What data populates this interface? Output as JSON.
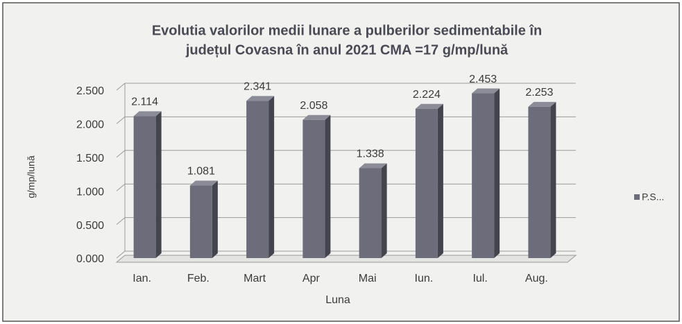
{
  "chart_data": {
    "type": "bar3d",
    "title": [
      "Evolutia valorilor medii lunare a pulberilor sedimentabile în",
      "județul Covasna  în anul 2021   CMA =17 g/mp/lună"
    ],
    "x_label": "Luna",
    "y_label": "g/mp/lună",
    "categories": [
      "Ian.",
      "Feb.",
      "Mart",
      "Apr",
      "Mai",
      "Iun.",
      "Iul.",
      "Aug."
    ],
    "series": [
      {
        "name": "P.S...",
        "color": "#6c6c7a",
        "values": [
          2.114,
          1.081,
          2.341,
          2.058,
          1.338,
          2.224,
          2.453,
          2.253
        ]
      }
    ],
    "ylim": [
      0,
      2.5
    ],
    "yticks": [
      {
        "value": 0,
        "label": "0.000"
      },
      {
        "value": 0.5,
        "label": "0.500"
      },
      {
        "value": 1,
        "label": "1.000"
      },
      {
        "value": 1.5,
        "label": "1.500"
      },
      {
        "value": 2,
        "label": "2.000"
      },
      {
        "value": 2.5,
        "label": "2.500"
      }
    ],
    "grid": true,
    "legend": "right"
  }
}
